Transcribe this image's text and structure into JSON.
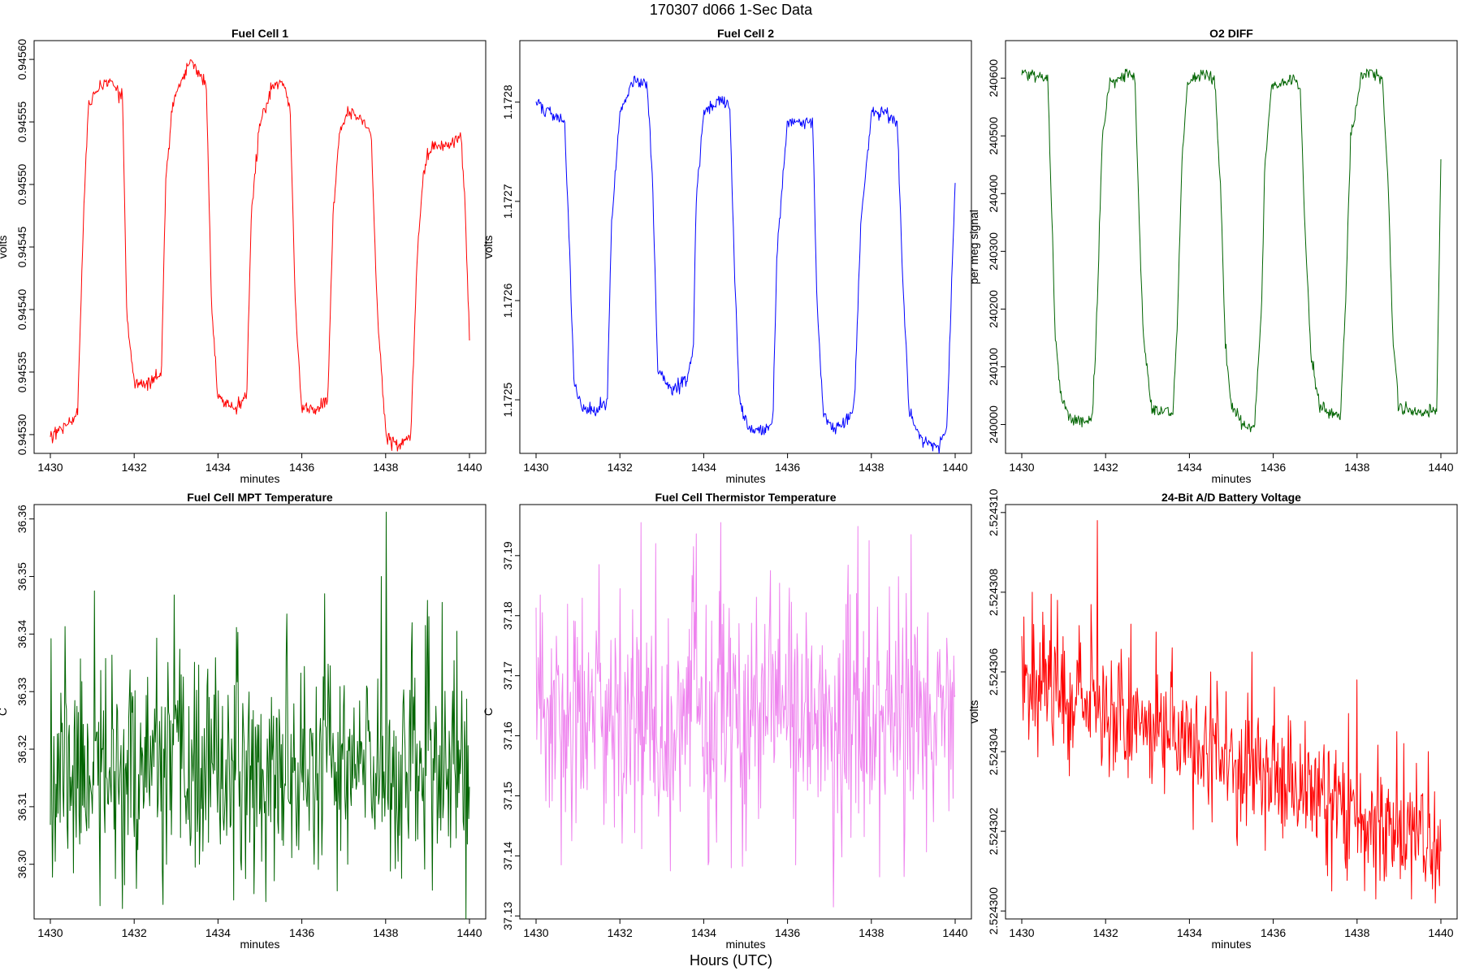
{
  "figure": {
    "title": "170307   d066   1-Sec Data",
    "xlabel": "Hours (UTC)"
  },
  "chart_data": [
    {
      "type": "line",
      "title": "Fuel Cell 1",
      "xlabel": "minutes",
      "ylabel": "volts",
      "color": "#ff0000",
      "xlim": [
        1430,
        1440
      ],
      "ylim": [
        0.945285,
        0.945615
      ],
      "xticks": [
        "1430",
        "1432",
        "1434",
        "1436",
        "1438",
        "1440"
      ],
      "yticks": [
        "0.94530",
        "0.94535",
        "0.94540",
        "0.94545",
        "0.94550",
        "0.94555",
        "0.94560"
      ],
      "series": [
        {
          "name": "Fuel Cell 1",
          "x": [
            1430.0,
            1430.5,
            1430.65,
            1430.8,
            1430.9,
            1431.0,
            1431.2,
            1431.5,
            1431.72,
            1431.82,
            1432.0,
            1432.3,
            1432.65,
            1432.75,
            1432.9,
            1433.1,
            1433.35,
            1433.5,
            1433.72,
            1433.85,
            1434.0,
            1434.4,
            1434.68,
            1434.8,
            1435.0,
            1435.3,
            1435.6,
            1435.72,
            1435.85,
            1436.0,
            1436.3,
            1436.62,
            1436.75,
            1436.9,
            1437.1,
            1437.5,
            1437.65,
            1437.8,
            1438.0,
            1438.3,
            1438.6,
            1438.75,
            1438.9,
            1439.1,
            1439.5,
            1439.8,
            1439.9,
            1440.0
          ],
          "y": [
            0.9453,
            0.94531,
            0.94532,
            0.94548,
            0.94556,
            0.94557,
            0.94558,
            0.94558,
            0.94557,
            0.9454,
            0.94534,
            0.94534,
            0.94535,
            0.9455,
            0.94556,
            0.94558,
            0.9456,
            0.94559,
            0.94558,
            0.9454,
            0.94533,
            0.94532,
            0.94533,
            0.94548,
            0.94555,
            0.94558,
            0.94558,
            0.94556,
            0.9454,
            0.94532,
            0.94532,
            0.94533,
            0.94548,
            0.94554,
            0.94556,
            0.94555,
            0.94554,
            0.9454,
            0.9453,
            0.94529,
            0.9453,
            0.94544,
            0.94551,
            0.94553,
            0.94553,
            0.94554,
            0.94548,
            0.94538
          ]
        }
      ]
    },
    {
      "type": "line",
      "title": "Fuel Cell 2",
      "xlabel": "minutes",
      "ylabel": "volts",
      "color": "#0000ff",
      "xlim": [
        1430,
        1440
      ],
      "ylim": [
        1.172446,
        1.172862
      ],
      "xticks": [
        "1430",
        "1432",
        "1434",
        "1436",
        "1438",
        "1440"
      ],
      "yticks": [
        "1.1725",
        "1.1726",
        "1.1727",
        "1.1728"
      ],
      "series": [
        {
          "name": "Fuel Cell 2",
          "x": [
            1430.0,
            1430.3,
            1430.68,
            1430.8,
            1430.9,
            1431.1,
            1431.5,
            1431.7,
            1431.8,
            1432.0,
            1432.3,
            1432.65,
            1432.78,
            1432.9,
            1433.2,
            1433.6,
            1433.75,
            1433.82,
            1434.0,
            1434.3,
            1434.62,
            1434.72,
            1434.85,
            1435.1,
            1435.45,
            1435.65,
            1435.75,
            1436.0,
            1436.3,
            1436.6,
            1436.7,
            1436.85,
            1437.1,
            1437.45,
            1437.6,
            1437.75,
            1438.0,
            1438.35,
            1438.62,
            1438.75,
            1438.9,
            1439.2,
            1439.55,
            1439.8,
            1439.92,
            1440.0
          ],
          "y": [
            1.1728,
            1.17279,
            1.17278,
            1.17265,
            1.17252,
            1.17249,
            1.17249,
            1.1725,
            1.17268,
            1.17279,
            1.17282,
            1.17282,
            1.17272,
            1.17253,
            1.17251,
            1.17252,
            1.17255,
            1.1727,
            1.17279,
            1.1728,
            1.1728,
            1.17265,
            1.1725,
            1.17247,
            1.17247,
            1.17248,
            1.17265,
            1.17278,
            1.17278,
            1.17278,
            1.1726,
            1.17249,
            1.17247,
            1.17248,
            1.1725,
            1.17268,
            1.17279,
            1.17279,
            1.17278,
            1.17262,
            1.17249,
            1.17246,
            1.17245,
            1.17247,
            1.17262,
            1.17272
          ]
        }
      ]
    },
    {
      "type": "line",
      "title": "O2 DIFF",
      "xlabel": "minutes",
      "ylabel": "per meg signal",
      "color": "#006400",
      "xlim": [
        1430,
        1440
      ],
      "ylim": [
        239950,
        240665
      ],
      "xticks": [
        "1430",
        "1432",
        "1434",
        "1436",
        "1438",
        "1440"
      ],
      "yticks": [
        "240000",
        "240100",
        "240200",
        "240300",
        "240400",
        "240500",
        "240600"
      ],
      "series": [
        {
          "name": "O2 DIFF",
          "x": [
            1430.0,
            1430.3,
            1430.62,
            1430.7,
            1430.8,
            1430.95,
            1431.2,
            1431.5,
            1431.68,
            1431.8,
            1431.92,
            1432.1,
            1432.5,
            1432.7,
            1432.78,
            1432.9,
            1433.1,
            1433.35,
            1433.6,
            1433.7,
            1433.82,
            1433.95,
            1434.1,
            1434.3,
            1434.6,
            1434.75,
            1434.85,
            1435.0,
            1435.3,
            1435.55,
            1435.72,
            1435.8,
            1435.95,
            1436.2,
            1436.5,
            1436.65,
            1436.75,
            1436.9,
            1437.1,
            1437.4,
            1437.6,
            1437.72,
            1437.85,
            1438.1,
            1438.3,
            1438.6,
            1438.75,
            1438.85,
            1439.0,
            1439.3,
            1439.75,
            1439.9,
            1440.0
          ],
          "y": [
            240610,
            240605,
            240600,
            240400,
            240150,
            240040,
            240010,
            240005,
            240003,
            240200,
            240500,
            240590,
            240610,
            240600,
            240400,
            240150,
            240030,
            240020,
            240020,
            240150,
            240450,
            240585,
            240600,
            240610,
            240600,
            240400,
            240150,
            240030,
            240000,
            239995,
            240200,
            240450,
            240580,
            240590,
            240600,
            240580,
            240350,
            240120,
            240030,
            240020,
            240010,
            240200,
            240500,
            240600,
            240615,
            240600,
            240400,
            240150,
            240030,
            240020,
            240025,
            240020,
            240460
          ]
        }
      ]
    },
    {
      "type": "line",
      "title": "Fuel Cell MPT Temperature",
      "xlabel": "minutes",
      "ylabel": "C",
      "color": "#006400",
      "xlim": [
        1430,
        1440
      ],
      "ylim": [
        36.2905,
        36.3625
      ],
      "xticks": [
        "1430",
        "1432",
        "1434",
        "1436",
        "1438",
        "1440"
      ],
      "yticks": [
        "36.30",
        "36.31",
        "36.32",
        "36.33",
        "36.34",
        "36.35",
        "36.36"
      ],
      "noise": {
        "points": 600,
        "mean": 36.3165,
        "sd": 0.0085,
        "trend": 0,
        "seed": 11
      },
      "spikes": [
        [
          1430.02,
          36.3392
        ],
        [
          1430.12,
          36.3005
        ],
        [
          1430.35,
          36.3413
        ],
        [
          1430.55,
          36.2985
        ],
        [
          1431.05,
          36.3475
        ],
        [
          1431.18,
          36.2928
        ],
        [
          1431.55,
          36.2975
        ],
        [
          1432.05,
          36.2958
        ],
        [
          1432.68,
          36.293
        ],
        [
          1432.95,
          36.3468
        ],
        [
          1433.55,
          36.3
        ],
        [
          1434.2,
          36.305
        ],
        [
          1434.55,
          36.299
        ],
        [
          1435.05,
          36.3005
        ],
        [
          1435.15,
          36.2935
        ],
        [
          1435.65,
          36.3435
        ],
        [
          1436.3,
          36.3
        ],
        [
          1436.55,
          36.347
        ],
        [
          1437.1,
          36.3
        ],
        [
          1437.6,
          36.325
        ],
        [
          1437.9,
          36.35
        ],
        [
          1438.02,
          36.3612
        ],
        [
          1438.3,
          36.3005
        ],
        [
          1438.95,
          36.3415
        ],
        [
          1439.12,
          36.2955
        ],
        [
          1439.35,
          36.3455
        ],
        [
          1439.7,
          36.3405
        ],
        [
          1439.95,
          36.3035
        ]
      ]
    },
    {
      "type": "line",
      "title": "Fuel Cell Thermistor Temperature",
      "xlabel": "minutes",
      "ylabel": "C",
      "color": "#ee82ee",
      "xlim": [
        1430,
        1440
      ],
      "ylim": [
        37.1295,
        37.1985
      ],
      "xticks": [
        "1430",
        "1432",
        "1434",
        "1436",
        "1438",
        "1440"
      ],
      "yticks": [
        "37.13",
        "37.14",
        "37.15",
        "37.16",
        "37.17",
        "37.18",
        "37.19"
      ],
      "noise": {
        "points": 600,
        "mean": 37.1625,
        "sd": 0.0095,
        "trend": 0,
        "seed": 23
      },
      "spikes": [
        [
          1430.15,
          37.1805
        ],
        [
          1430.6,
          37.1385
        ],
        [
          1430.85,
          37.1425
        ],
        [
          1431.5,
          37.1885
        ],
        [
          1432.0,
          37.1845
        ],
        [
          1432.5,
          37.1955
        ],
        [
          1432.85,
          37.192
        ],
        [
          1433.2,
          37.1375
        ],
        [
          1433.75,
          37.1915
        ],
        [
          1434.1,
          37.1385
        ],
        [
          1434.4,
          37.1955
        ],
        [
          1434.65,
          37.138
        ],
        [
          1435.6,
          37.1875
        ],
        [
          1436.2,
          37.1385
        ],
        [
          1436.45,
          37.1805
        ],
        [
          1437.1,
          37.1315
        ],
        [
          1437.5,
          37.1835
        ],
        [
          1437.95,
          37.1925
        ],
        [
          1438.2,
          37.1365
        ],
        [
          1438.65,
          37.1865
        ],
        [
          1438.95,
          37.1935
        ],
        [
          1439.35,
          37.1805
        ],
        [
          1439.85,
          37.1475
        ]
      ]
    },
    {
      "type": "line",
      "title": "24-Bit A/D Battery Voltage",
      "xlabel": "minutes",
      "ylabel": "volts",
      "color": "#ff0000",
      "xlim": [
        1430,
        1440
      ],
      "ylim": [
        2.5242998,
        2.5243102
      ],
      "xticks": [
        "1430",
        "1432",
        "1434",
        "1436",
        "1438",
        "1440"
      ],
      "yticks": [
        "2.524300",
        "2.524302",
        "2.524304",
        "2.524306",
        "2.524308",
        "2.524310"
      ],
      "noise": {
        "points": 600,
        "mean": 2.524306,
        "sd": 7.8e-07,
        "trend": -4.4e-07,
        "seed": 37
      },
      "spikes": [
        [
          1430.25,
          2.524308
        ],
        [
          1430.5,
          2.5243075
        ],
        [
          1430.85,
          2.5243078
        ],
        [
          1431.1,
          2.5243038
        ],
        [
          1431.8,
          2.5243098
        ],
        [
          1432.6,
          2.5243072
        ],
        [
          1433.2,
          2.524307
        ],
        [
          1433.35,
          2.5243038
        ],
        [
          1434.5,
          2.524306
        ],
        [
          1435.5,
          2.5243065
        ],
        [
          1436.2,
          2.5243022
        ],
        [
          1437.1,
          2.524304
        ],
        [
          1437.4,
          2.5243005
        ],
        [
          1438.0,
          2.5243058
        ],
        [
          1438.45,
          2.5243003
        ],
        [
          1438.95,
          2.5243045
        ],
        [
          1439.3,
          2.5243003
        ],
        [
          1439.7,
          2.524304
        ],
        [
          1439.9,
          2.5243018
        ]
      ]
    }
  ]
}
